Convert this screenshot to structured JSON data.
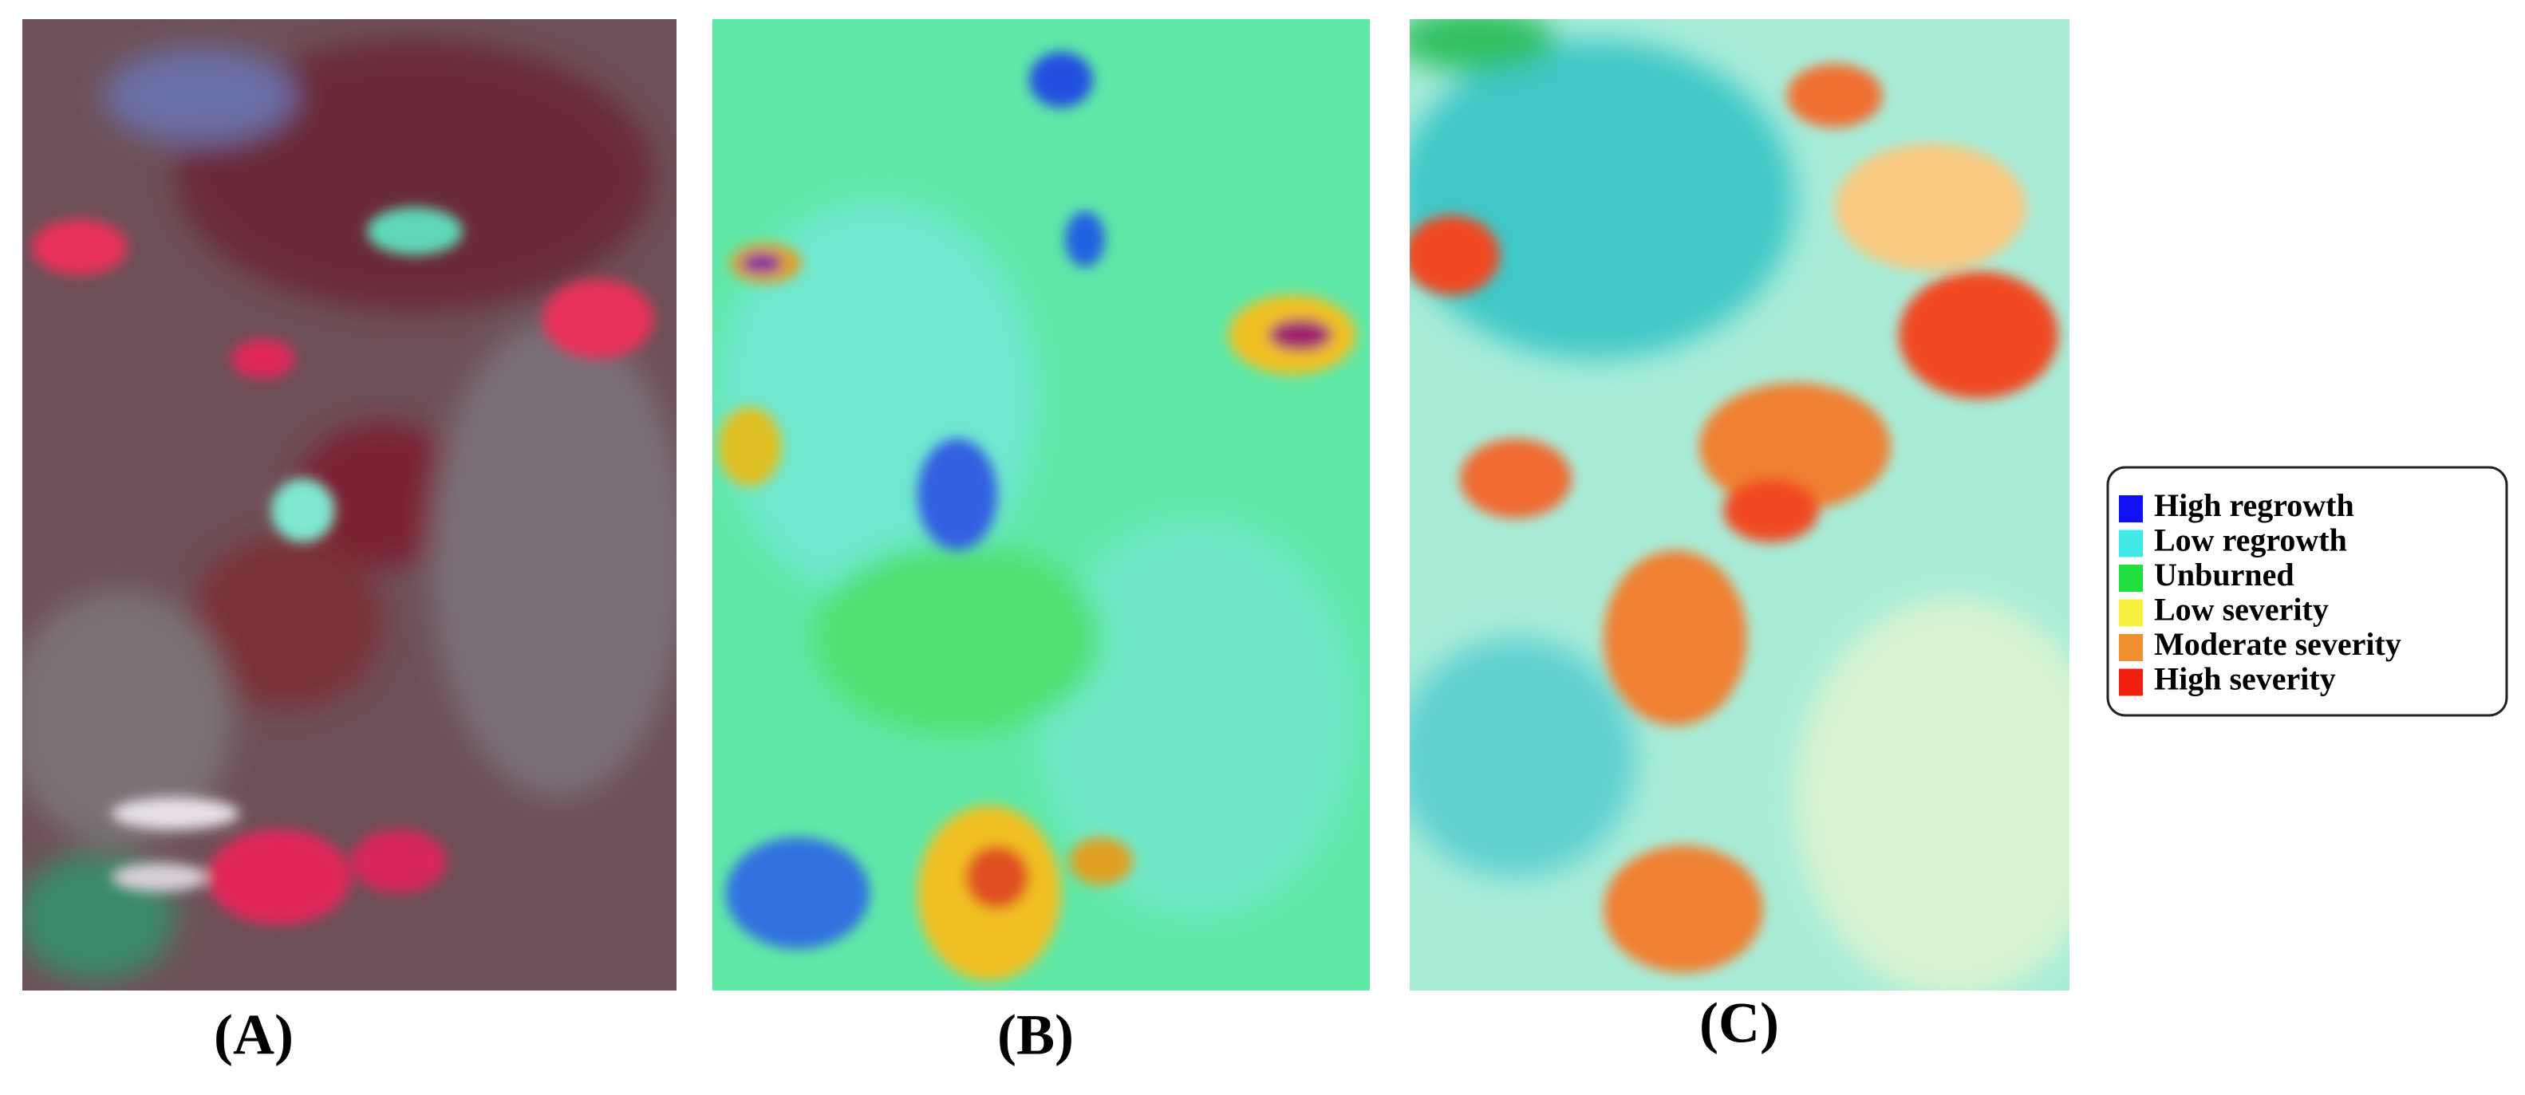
{
  "panels": [
    {
      "label": "(A)"
    },
    {
      "label": "(B)"
    },
    {
      "label": "(C)"
    }
  ],
  "legend": [
    {
      "label": "High regrowth",
      "color": "#1010f0"
    },
    {
      "label": "Low regrowth",
      "color": "#40e8e8"
    },
    {
      "label": "Unburned",
      "color": "#20e040"
    },
    {
      "label": "Low severity",
      "color": "#f8f040"
    },
    {
      "label": "Moderate severity",
      "color": "#f09030"
    },
    {
      "label": "High severity",
      "color": "#f02010"
    }
  ]
}
